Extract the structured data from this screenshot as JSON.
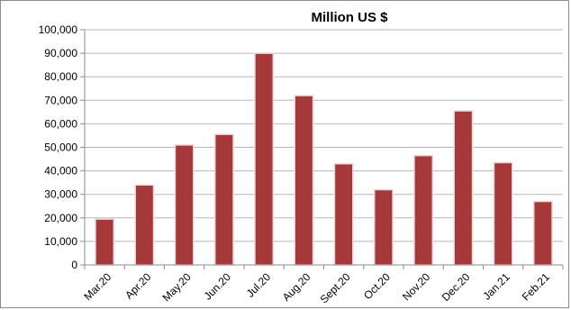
{
  "chart_data": {
    "type": "bar",
    "title": "Million US $",
    "xlabel": "",
    "ylabel": "",
    "categories": [
      "Mar.20",
      "Apr.20",
      "May.20",
      "Jun.20",
      "Jul.20",
      "Aug.20",
      "Sept.20",
      "Oct.20",
      "Nov.20",
      "Dec.20",
      "Jan.21",
      "Feb.21"
    ],
    "values": [
      19500,
      34000,
      51000,
      55500,
      90000,
      72000,
      43000,
      32000,
      46500,
      65500,
      43500,
      27000
    ],
    "ylim": [
      0,
      100000
    ],
    "yticks": [
      "0",
      "10,000",
      "20,000",
      "30,000",
      "40,000",
      "50,000",
      "60,000",
      "70,000",
      "80,000",
      "90,000",
      "100,000"
    ],
    "grid": true,
    "legend": "none",
    "colors": {
      "bar": "#a5393a",
      "bar_edge": "#f2d6d6",
      "grid": "#b7b7b7",
      "axis": "#8c8c8c"
    }
  }
}
